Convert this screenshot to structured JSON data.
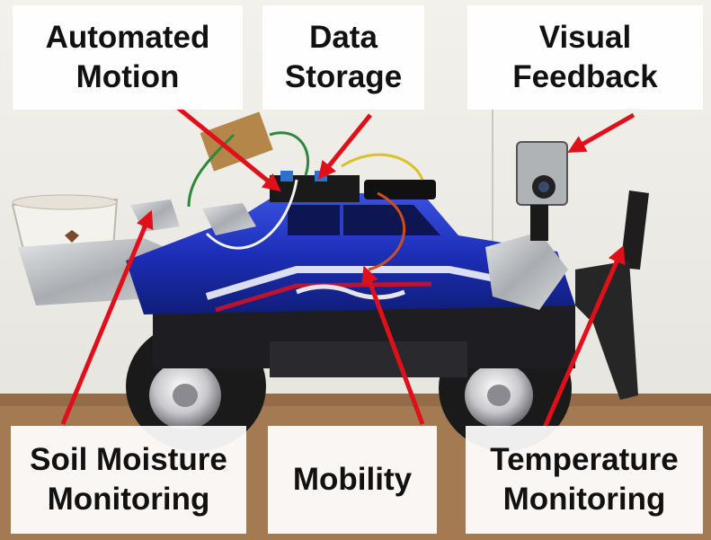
{
  "labels": {
    "automated_motion": {
      "line1": "Automated",
      "line2": "Motion"
    },
    "data_storage": {
      "line1": "Data",
      "line2": "Storage"
    },
    "visual_feedback": {
      "line1": "Visual",
      "line2": "Feedback"
    },
    "soil_moisture": {
      "line1": "Soil Moisture",
      "line2": "Monitoring"
    },
    "mobility": {
      "line1": "Mobility"
    },
    "temperature": {
      "line1": "Temperature",
      "line2": "Monitoring"
    }
  },
  "colors": {
    "arrow": "#e0101a",
    "truck_body": "#1c2fb8",
    "tape": "#b9bcc0",
    "tire": "#1a1a1a",
    "wall": "#ecebe6",
    "table": "#a47a52"
  }
}
